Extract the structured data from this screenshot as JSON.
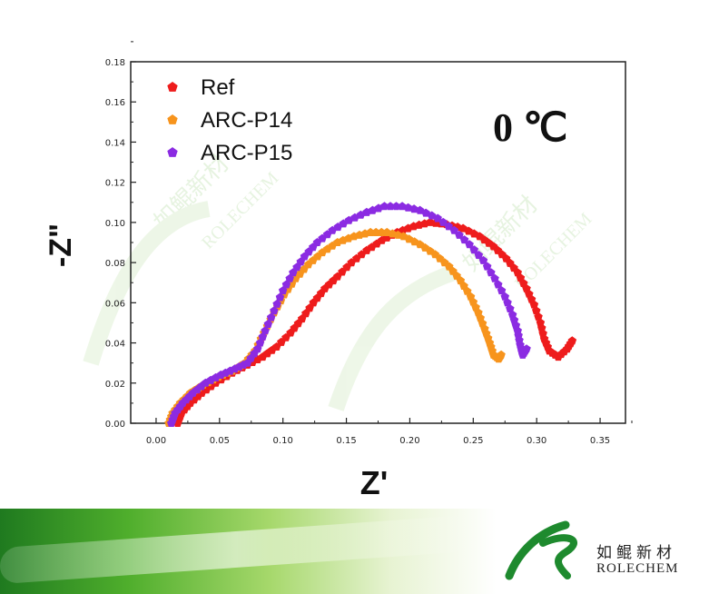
{
  "chart_data": {
    "type": "scatter",
    "title": "",
    "annotation": "0 ℃",
    "xlabel": "Z'",
    "ylabel": "-Z\"",
    "xlim": [
      -0.02,
      0.37
    ],
    "ylim": [
      0.0,
      0.18
    ],
    "xticks": [
      "0.00",
      "0.05",
      "0.10",
      "0.15",
      "0.20",
      "0.25",
      "0.30",
      "0.35"
    ],
    "yticks": [
      "0.00",
      "0.02",
      "0.04",
      "0.06",
      "0.08",
      "0.10",
      "0.12",
      "0.14",
      "0.16",
      "0.18"
    ],
    "legend_position": "top-left",
    "series": [
      {
        "name": "Ref",
        "color": "#ee1c1c",
        "points": [
          [
            0.017,
            0.0
          ],
          [
            0.02,
            0.005
          ],
          [
            0.027,
            0.01
          ],
          [
            0.036,
            0.015
          ],
          [
            0.047,
            0.02
          ],
          [
            0.06,
            0.025
          ],
          [
            0.072,
            0.029
          ],
          [
            0.084,
            0.033
          ],
          [
            0.095,
            0.038
          ],
          [
            0.106,
            0.045
          ],
          [
            0.115,
            0.052
          ],
          [
            0.124,
            0.06
          ],
          [
            0.133,
            0.067
          ],
          [
            0.143,
            0.073
          ],
          [
            0.154,
            0.08
          ],
          [
            0.166,
            0.086
          ],
          [
            0.178,
            0.091
          ],
          [
            0.19,
            0.095
          ],
          [
            0.203,
            0.098
          ],
          [
            0.216,
            0.1
          ],
          [
            0.229,
            0.099
          ],
          [
            0.242,
            0.097
          ],
          [
            0.255,
            0.093
          ],
          [
            0.266,
            0.088
          ],
          [
            0.276,
            0.082
          ],
          [
            0.285,
            0.075
          ],
          [
            0.292,
            0.067
          ],
          [
            0.298,
            0.059
          ],
          [
            0.303,
            0.05
          ],
          [
            0.306,
            0.042
          ],
          [
            0.31,
            0.036
          ],
          [
            0.317,
            0.033
          ],
          [
            0.324,
            0.037
          ],
          [
            0.328,
            0.041
          ]
        ]
      },
      {
        "name": "ARC-P14",
        "color": "#f7941d",
        "points": [
          [
            0.01,
            0.0
          ],
          [
            0.013,
            0.005
          ],
          [
            0.019,
            0.01
          ],
          [
            0.027,
            0.015
          ],
          [
            0.037,
            0.019
          ],
          [
            0.049,
            0.023
          ],
          [
            0.06,
            0.026
          ],
          [
            0.07,
            0.03
          ],
          [
            0.078,
            0.036
          ],
          [
            0.085,
            0.045
          ],
          [
            0.093,
            0.055
          ],
          [
            0.101,
            0.064
          ],
          [
            0.11,
            0.072
          ],
          [
            0.12,
            0.079
          ],
          [
            0.131,
            0.085
          ],
          [
            0.143,
            0.09
          ],
          [
            0.156,
            0.093
          ],
          [
            0.169,
            0.095
          ],
          [
            0.182,
            0.095
          ],
          [
            0.195,
            0.093
          ],
          [
            0.208,
            0.089
          ],
          [
            0.22,
            0.084
          ],
          [
            0.231,
            0.078
          ],
          [
            0.24,
            0.071
          ],
          [
            0.248,
            0.063
          ],
          [
            0.254,
            0.055
          ],
          [
            0.259,
            0.047
          ],
          [
            0.263,
            0.04
          ],
          [
            0.266,
            0.034
          ],
          [
            0.27,
            0.032
          ],
          [
            0.272,
            0.034
          ]
        ]
      },
      {
        "name": "ARC-P15",
        "color": "#8b2be2",
        "points": [
          [
            0.012,
            0.0
          ],
          [
            0.015,
            0.005
          ],
          [
            0.021,
            0.01
          ],
          [
            0.029,
            0.015
          ],
          [
            0.039,
            0.02
          ],
          [
            0.051,
            0.024
          ],
          [
            0.062,
            0.027
          ],
          [
            0.072,
            0.03
          ],
          [
            0.08,
            0.037
          ],
          [
            0.086,
            0.046
          ],
          [
            0.093,
            0.056
          ],
          [
            0.1,
            0.066
          ],
          [
            0.108,
            0.075
          ],
          [
            0.117,
            0.083
          ],
          [
            0.127,
            0.09
          ],
          [
            0.139,
            0.096
          ],
          [
            0.152,
            0.101
          ],
          [
            0.166,
            0.105
          ],
          [
            0.18,
            0.108
          ],
          [
            0.194,
            0.108
          ],
          [
            0.208,
            0.106
          ],
          [
            0.222,
            0.102
          ],
          [
            0.235,
            0.096
          ],
          [
            0.247,
            0.089
          ],
          [
            0.258,
            0.081
          ],
          [
            0.267,
            0.072
          ],
          [
            0.275,
            0.063
          ],
          [
            0.281,
            0.054
          ],
          [
            0.285,
            0.046
          ],
          [
            0.287,
            0.039
          ],
          [
            0.289,
            0.034
          ],
          [
            0.292,
            0.037
          ]
        ]
      }
    ]
  },
  "watermark": {
    "cn": "如鲲新材",
    "en": "ROLECHEM"
  },
  "brand": {
    "cn": "如鲲新材",
    "en": "ROLECHEM"
  }
}
